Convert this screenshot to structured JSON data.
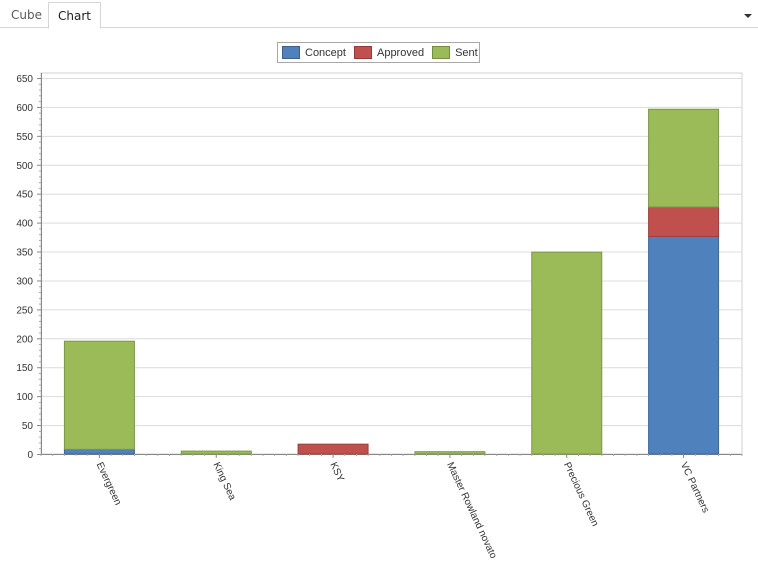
{
  "tabs": [
    {
      "label": "Cube",
      "active": false
    },
    {
      "label": "Chart",
      "active": true
    }
  ],
  "colors": {
    "Concept": "#4f81bd",
    "Approved": "#c0504d",
    "Sent": "#9bbb59"
  },
  "chart_data": {
    "type": "bar",
    "stacked": true,
    "categories": [
      "Evergreen",
      "King Sea",
      "KSY",
      "Master Rowland novato",
      "Precious Green",
      "VC Partners"
    ],
    "series": [
      {
        "name": "Concept",
        "values": [
          8,
          0,
          0,
          0,
          0,
          376
        ]
      },
      {
        "name": "Approved",
        "values": [
          0,
          0,
          17,
          0,
          0,
          51
        ]
      },
      {
        "name": "Sent",
        "values": [
          187,
          5,
          0,
          4,
          349,
          169
        ]
      }
    ],
    "ylim": [
      0,
      650
    ],
    "yticks": [
      0,
      50,
      100,
      150,
      200,
      250,
      300,
      350,
      400,
      450,
      500,
      550,
      600,
      650
    ],
    "legend_position": "top-center",
    "grid": true
  }
}
